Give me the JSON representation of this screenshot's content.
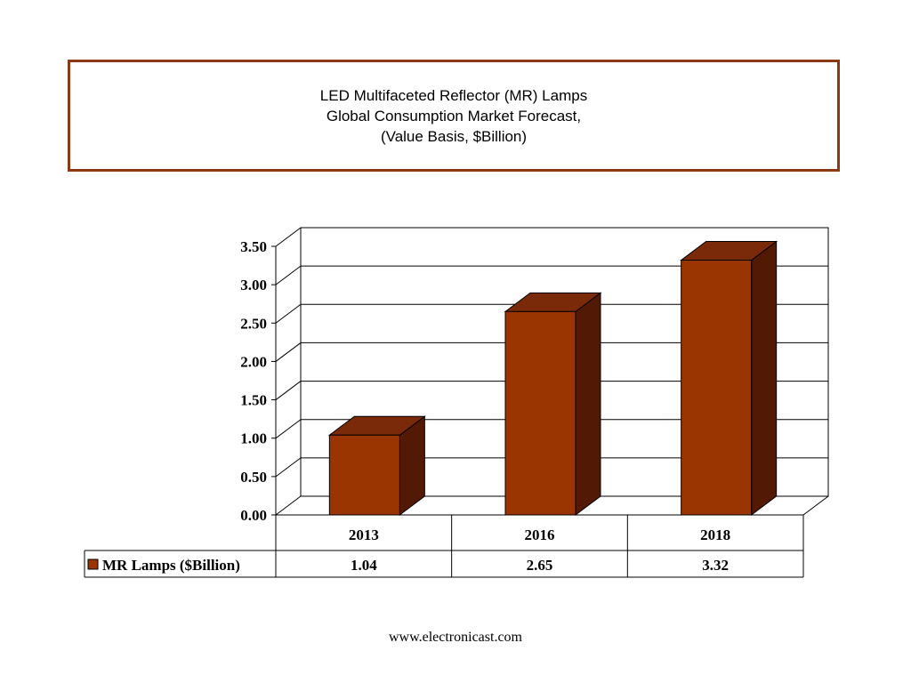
{
  "title_lines": [
    "LED Multifaceted Reflector (MR) Lamps",
    "Global Consumption Market Forecast,",
    "(Value Basis, $Billion)"
  ],
  "footer": "www.electronicast.com",
  "colors": {
    "title_border": "#8b3a14",
    "bar_front": "#9a3400",
    "bar_top": "#7a2a08",
    "bar_side": "#521a04"
  },
  "chart_data": {
    "type": "bar",
    "style": "3d",
    "categories": [
      "2013",
      "2016",
      "2018"
    ],
    "series": [
      {
        "name": "MR Lamps ($Billion)",
        "values": [
          1.04,
          2.65,
          3.32
        ],
        "value_labels": [
          "1.04",
          "2.65",
          "3.32"
        ]
      }
    ],
    "ylim": [
      0,
      3.5
    ],
    "yticks": [
      "0.00",
      "0.50",
      "1.00",
      "1.50",
      "2.00",
      "2.50",
      "3.00",
      "3.50"
    ],
    "grid": true,
    "legend": "data-table",
    "data_table": true
  }
}
